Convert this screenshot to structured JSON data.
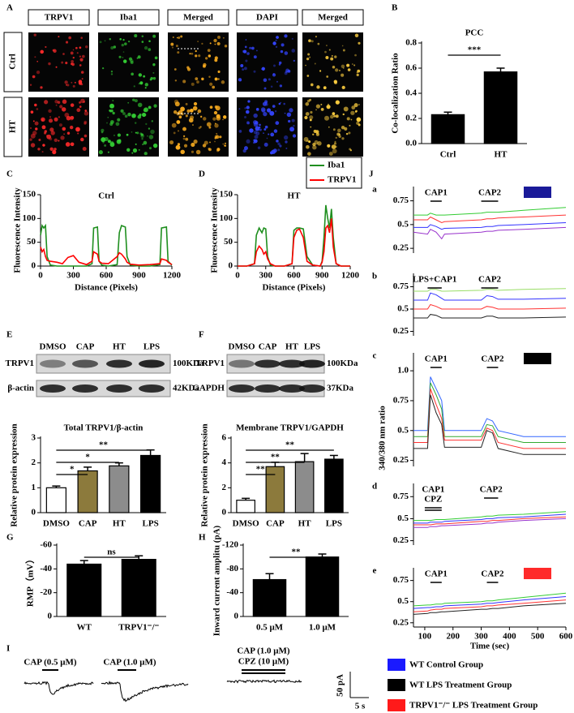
{
  "panel_letters": [
    "A",
    "B",
    "C",
    "D",
    "E",
    "F",
    "G",
    "H",
    "I",
    "J"
  ],
  "panel_a": {
    "columns": [
      "TRPV1",
      "Iba1",
      "Merged",
      "DAPI",
      "Merged"
    ],
    "rows": [
      "Ctrl",
      "HT"
    ]
  },
  "panel_e_blot": {
    "lanes": [
      "DMSO",
      "CAP",
      "HT",
      "LPS"
    ],
    "bands": [
      "TRPV1",
      "β-actin"
    ],
    "sizes": [
      "100KDa",
      "42KDa"
    ]
  },
  "panel_f_blot": {
    "lanes": [
      "DMSO",
      "CAP",
      "HT",
      "LPS"
    ],
    "bands": [
      "TRPV1",
      "GAPDH"
    ],
    "sizes": [
      "100KDa",
      "37KDa"
    ]
  },
  "panel_i": {
    "traces": [
      "CAP (0.5 μM)",
      "CAP (1.0 μM)",
      "CAP (1.0 μM)"
    ],
    "blocker": "CPZ (10 μM)",
    "scale_y": "50 pA",
    "scale_x": "5 s"
  },
  "panel_j": {
    "letters": [
      "a",
      "b",
      "c",
      "d",
      "e"
    ],
    "ylabel": "340/380 nm ratio"
  },
  "legend": [
    {
      "name": "WT Control Group",
      "color": "#1a1aff"
    },
    {
      "name": "WT LPS Treatment Group",
      "color": "#000000"
    },
    {
      "name": "TRPV1⁻/⁻ LPS Treatment Group",
      "color": "#ff1a1a"
    }
  ],
  "chart_data": [
    {
      "type": "bar",
      "title": "PCC",
      "ylabel": "Co-localization Ratio",
      "categories": [
        "Ctrl",
        "HT"
      ],
      "values": [
        0.23,
        0.57
      ],
      "errors": [
        0.02,
        0.03
      ],
      "color": "#000000",
      "ylim": [
        0,
        0.8
      ],
      "yticks": [
        {
          "value": 0,
          "label": "0.0"
        },
        0.2,
        0.4,
        0.6,
        0.8
      ],
      "comparisons": [
        {
          "between": [
            "Ctrl",
            "HT"
          ],
          "label": "***"
        }
      ]
    },
    {
      "type": "line",
      "title": "Ctrl",
      "xlabel": "Distance (Pixels)",
      "ylabel": "Fluorescence Intensity",
      "x": [
        0,
        15,
        30,
        45,
        60,
        90,
        150,
        200,
        250,
        300,
        350,
        420,
        470,
        485,
        520,
        535,
        560,
        620,
        700,
        720,
        740,
        775,
        790,
        820,
        900,
        1000,
        1090,
        1105,
        1150,
        1165,
        1200
      ],
      "series": [
        {
          "color": "#1f8f1f",
          "values": [
            65,
            85,
            80,
            85,
            20,
            2,
            0,
            0,
            0,
            0,
            0,
            0,
            5,
            80,
            82,
            10,
            2,
            0,
            3,
            70,
            85,
            82,
            20,
            2,
            0,
            0,
            3,
            80,
            82,
            10,
            2
          ]
        },
        {
          "color": "#ff0000",
          "values": [
            40,
            30,
            35,
            20,
            12,
            10,
            8,
            5,
            18,
            22,
            8,
            3,
            10,
            30,
            25,
            10,
            6,
            5,
            20,
            28,
            25,
            15,
            8,
            4,
            2,
            3,
            5,
            15,
            12,
            8,
            3
          ]
        }
      ],
      "xlim": [
        0,
        1200
      ],
      "ylim": [
        0,
        150
      ],
      "xticks": [
        0,
        300,
        600,
        900,
        1200
      ],
      "yticks": [
        0,
        50,
        100,
        150
      ]
    },
    {
      "type": "line",
      "title": "HT",
      "xlabel": "Distance (Pixels)",
      "ylabel": "Fluorescence Intensity",
      "legend": "upper right",
      "x": [
        0,
        100,
        180,
        200,
        230,
        260,
        280,
        300,
        320,
        350,
        400,
        500,
        580,
        600,
        630,
        660,
        700,
        740,
        800,
        880,
        900,
        920,
        940,
        960,
        980,
        1000,
        1020,
        1050,
        1100,
        1200
      ],
      "series": [
        {
          "name": "Iba1",
          "color": "#1f8f1f",
          "values": [
            0,
            0,
            5,
            65,
            80,
            70,
            80,
            78,
            20,
            2,
            0,
            0,
            5,
            75,
            80,
            80,
            78,
            20,
            2,
            0,
            10,
            60,
            128,
            100,
            80,
            120,
            60,
            5,
            0,
            0
          ]
        },
        {
          "name": "TRPV1",
          "color": "#ff0000",
          "values": [
            0,
            0,
            5,
            30,
            42,
            35,
            25,
            30,
            15,
            5,
            0,
            0,
            5,
            60,
            75,
            78,
            60,
            10,
            2,
            0,
            8,
            30,
            80,
            85,
            70,
            100,
            40,
            5,
            0,
            0
          ]
        }
      ],
      "xlim": [
        0,
        1200
      ],
      "ylim": [
        0,
        150
      ],
      "xticks": [
        0,
        300,
        600,
        900,
        1200
      ],
      "yticks": [
        0,
        50,
        100,
        150
      ]
    },
    {
      "type": "bar",
      "title": "Total TRPV1/β-actin",
      "ylabel": "Relative protein expression",
      "categories": [
        "DMSO",
        "CAP",
        "HT",
        "LPS"
      ],
      "values": [
        1.0,
        1.68,
        1.88,
        2.3
      ],
      "errors": [
        0.07,
        0.15,
        0.12,
        0.22
      ],
      "colors": [
        "#ffffff",
        "#8c7a3c",
        "#8c8c8c",
        "#000000"
      ],
      "ylim": [
        0,
        3
      ],
      "yticks": [
        0,
        1,
        2,
        3
      ],
      "comparisons": [
        {
          "between": [
            "DMSO",
            "CAP"
          ],
          "label": "*"
        },
        {
          "between": [
            "DMSO",
            "HT"
          ],
          "label": "*"
        },
        {
          "between": [
            "DMSO",
            "LPS"
          ],
          "label": "**"
        }
      ]
    },
    {
      "type": "bar",
      "title": "Membrane TRPV1/GAPDH",
      "ylabel": "Relative protein expression",
      "categories": [
        "DMSO",
        "CAP",
        "HT",
        "LPS"
      ],
      "values": [
        1.0,
        3.7,
        4.1,
        4.3
      ],
      "errors": [
        0.15,
        0.35,
        0.65,
        0.3
      ],
      "colors": [
        "#ffffff",
        "#8c7a3c",
        "#8c8c8c",
        "#000000"
      ],
      "ylim": [
        0,
        6
      ],
      "yticks": [
        0,
        2,
        4,
        6
      ],
      "comparisons": [
        {
          "between": [
            "DMSO",
            "CAP"
          ],
          "label": "**"
        },
        {
          "between": [
            "DMSO",
            "HT"
          ],
          "label": "**"
        },
        {
          "between": [
            "DMSO",
            "LPS"
          ],
          "label": "**"
        }
      ]
    },
    {
      "type": "bar",
      "ylabel": "RMP（mV）",
      "categories": [
        "WT",
        "TRPV1⁻/⁻"
      ],
      "values": [
        -44,
        -48
      ],
      "errors": [
        3,
        3
      ],
      "color": "#000000",
      "ylim": [
        0,
        -60
      ],
      "yticks": [
        0,
        -20,
        -40,
        -60
      ],
      "comparisons": [
        {
          "between": [
            "WT",
            "TRPV1⁻/⁻"
          ],
          "label": "ns"
        }
      ]
    },
    {
      "type": "bar",
      "ylabel": "Inward current amplitu (pA)",
      "categories": [
        "0.5 μM",
        "1.0 μM"
      ],
      "values": [
        -62,
        -100
      ],
      "errors": [
        10,
        5
      ],
      "color": "#000000",
      "ylim": [
        0,
        -120
      ],
      "yticks": [
        0,
        -40,
        -80,
        -120
      ],
      "comparisons": [
        {
          "between": [
            "0.5 μM",
            "1.0 μM"
          ],
          "label": "**"
        }
      ]
    },
    {
      "type": "line",
      "marker_color": "#1a1a99",
      "x": [
        60,
        110,
        120,
        140,
        160,
        170,
        300,
        320,
        340,
        360,
        450,
        600
      ],
      "series": [
        {
          "color": "#33cc33",
          "values": [
            0.6,
            0.6,
            0.62,
            0.6,
            0.6,
            0.6,
            0.62,
            0.63,
            0.63,
            0.63,
            0.65,
            0.68
          ]
        },
        {
          "color": "#ff3333",
          "values": [
            0.55,
            0.55,
            0.58,
            0.55,
            0.52,
            0.53,
            0.55,
            0.56,
            0.56,
            0.57,
            0.58,
            0.6
          ]
        },
        {
          "color": "#3333ff",
          "values": [
            0.47,
            0.47,
            0.5,
            0.48,
            0.45,
            0.46,
            0.47,
            0.48,
            0.48,
            0.49,
            0.5,
            0.52
          ]
        },
        {
          "color": "#9933cc",
          "values": [
            0.42,
            0.4,
            0.45,
            0.42,
            0.35,
            0.4,
            0.42,
            0.43,
            0.43,
            0.44,
            0.45,
            0.47
          ]
        }
      ],
      "xlim": [
        60,
        600
      ],
      "ylim": [
        0.2,
        0.9
      ],
      "yticks": [
        0.25,
        0.5,
        0.75
      ],
      "stimuli": [
        {
          "label": "CAP1",
          "start": 120,
          "end": 160
        },
        {
          "label": "CAP2",
          "start": 300,
          "end": 360
        }
      ]
    },
    {
      "type": "line",
      "x": [
        60,
        110,
        120,
        140,
        160,
        170,
        300,
        320,
        340,
        360,
        450,
        600
      ],
      "series": [
        {
          "color": "#99dd66",
          "values": [
            0.7,
            0.7,
            0.72,
            0.72,
            0.7,
            0.7,
            0.71,
            0.72,
            0.72,
            0.71,
            0.72,
            0.73
          ]
        },
        {
          "color": "#3333ff",
          "values": [
            0.6,
            0.6,
            0.68,
            0.66,
            0.62,
            0.6,
            0.6,
            0.65,
            0.64,
            0.61,
            0.61,
            0.62
          ]
        },
        {
          "color": "#ff3333",
          "values": [
            0.5,
            0.5,
            0.55,
            0.53,
            0.5,
            0.5,
            0.5,
            0.53,
            0.52,
            0.5,
            0.5,
            0.51
          ]
        },
        {
          "color": "#222222",
          "values": [
            0.4,
            0.4,
            0.44,
            0.43,
            0.4,
            0.4,
            0.4,
            0.42,
            0.42,
            0.4,
            0.4,
            0.41
          ]
        }
      ],
      "xlim": [
        60,
        600
      ],
      "ylim": [
        0.2,
        0.9
      ],
      "yticks": [
        0.25,
        0.5,
        0.75
      ],
      "stimuli": [
        {
          "label": "LPS+CAP1",
          "start": 110,
          "end": 160
        },
        {
          "label": "CAP2",
          "start": 300,
          "end": 360
        }
      ]
    },
    {
      "type": "line",
      "marker_color": "#000000",
      "x": [
        60,
        110,
        120,
        140,
        160,
        170,
        300,
        320,
        340,
        360,
        450,
        600
      ],
      "series": [
        {
          "color": "#3366ff",
          "values": [
            0.5,
            0.5,
            0.95,
            0.85,
            0.75,
            0.5,
            0.5,
            0.6,
            0.58,
            0.5,
            0.45,
            0.45
          ]
        },
        {
          "color": "#33aa33",
          "values": [
            0.45,
            0.45,
            0.9,
            0.8,
            0.68,
            0.45,
            0.45,
            0.55,
            0.54,
            0.45,
            0.4,
            0.4
          ]
        },
        {
          "color": "#ff3333",
          "values": [
            0.4,
            0.4,
            0.85,
            0.72,
            0.6,
            0.42,
            0.42,
            0.52,
            0.5,
            0.4,
            0.35,
            0.35
          ]
        },
        {
          "color": "#222222",
          "values": [
            0.35,
            0.35,
            0.8,
            0.65,
            0.55,
            0.36,
            0.36,
            0.5,
            0.48,
            0.35,
            0.3,
            0.3
          ]
        }
      ],
      "xlim": [
        60,
        600
      ],
      "ylim": [
        0.2,
        1.15
      ],
      "yticks": [
        0.25,
        0.5,
        0.75,
        {
          "value": 1,
          "label": "1.0"
        }
      ],
      "stimuli": [
        {
          "label": "CAP1",
          "start": 120,
          "end": 160
        },
        {
          "label": "CAP2",
          "start": 320,
          "end": 360
        }
      ]
    },
    {
      "type": "line",
      "x": [
        60,
        110,
        120,
        140,
        160,
        170,
        300,
        320,
        340,
        360,
        450,
        600
      ],
      "series": [
        {
          "color": "#33cc33",
          "values": [
            0.48,
            0.48,
            0.48,
            0.49,
            0.49,
            0.49,
            0.52,
            0.53,
            0.53,
            0.54,
            0.55,
            0.58
          ]
        },
        {
          "color": "#3333ff",
          "values": [
            0.45,
            0.45,
            0.46,
            0.46,
            0.46,
            0.47,
            0.49,
            0.5,
            0.5,
            0.51,
            0.52,
            0.55
          ]
        },
        {
          "color": "#ff3333",
          "values": [
            0.43,
            0.43,
            0.43,
            0.44,
            0.44,
            0.44,
            0.47,
            0.47,
            0.48,
            0.48,
            0.5,
            0.52
          ]
        },
        {
          "color": "#9933cc",
          "values": [
            0.4,
            0.4,
            0.41,
            0.41,
            0.42,
            0.42,
            0.44,
            0.45,
            0.45,
            0.46,
            0.48,
            0.5
          ]
        }
      ],
      "xlim": [
        60,
        600
      ],
      "ylim": [
        0.2,
        0.9
      ],
      "yticks": [
        0.25,
        0.5,
        0.75
      ],
      "stimuli": [
        {
          "label": "CAP1",
          "start": 100,
          "end": 160
        },
        {
          "label": "CPZ",
          "start": 100,
          "end": 160
        },
        {
          "label": "CAP2",
          "start": 310,
          "end": 360
        }
      ]
    },
    {
      "type": "line",
      "marker_color": "#ff2a2a",
      "xlabel": "Time (sec)",
      "x": [
        60,
        110,
        120,
        140,
        160,
        170,
        300,
        320,
        340,
        360,
        450,
        600
      ],
      "series": [
        {
          "color": "#33cc33",
          "values": [
            0.45,
            0.46,
            0.46,
            0.47,
            0.47,
            0.48,
            0.5,
            0.51,
            0.51,
            0.52,
            0.55,
            0.6
          ]
        },
        {
          "color": "#3333ff",
          "values": [
            0.42,
            0.43,
            0.43,
            0.44,
            0.44,
            0.45,
            0.47,
            0.48,
            0.48,
            0.49,
            0.52,
            0.56
          ]
        },
        {
          "color": "#ff3333",
          "values": [
            0.38,
            0.39,
            0.4,
            0.41,
            0.41,
            0.42,
            0.44,
            0.45,
            0.45,
            0.46,
            0.48,
            0.52
          ]
        },
        {
          "color": "#222222",
          "values": [
            0.35,
            0.36,
            0.37,
            0.37,
            0.38,
            0.38,
            0.41,
            0.41,
            0.42,
            0.42,
            0.45,
            0.48
          ]
        }
      ],
      "xlim": [
        60,
        600
      ],
      "ylim": [
        0.2,
        0.9
      ],
      "xticks": [
        100,
        200,
        300,
        400,
        500,
        600
      ],
      "yticks": [
        0.25,
        0.5,
        0.75
      ],
      "stimuli": [
        {
          "label": "CAP1",
          "start": 120,
          "end": 160
        },
        {
          "label": "CAP2",
          "start": 320,
          "end": 360
        }
      ]
    }
  ]
}
